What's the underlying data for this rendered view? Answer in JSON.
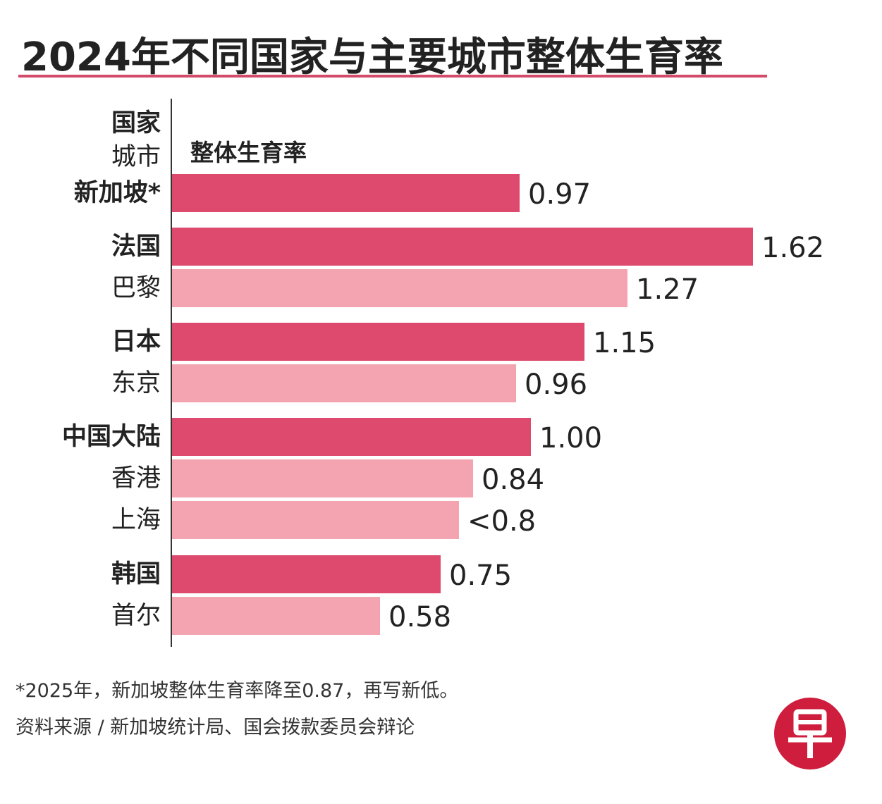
{
  "title": "2024年不同国家与主要城市整体生育率",
  "header": {
    "country": "国家",
    "city": "城市",
    "metric": "整体生育率"
  },
  "chart_data": {
    "type": "bar",
    "orientation": "horizontal",
    "title": "2024年不同国家与主要城市整体生育率",
    "xlabel": "整体生育率",
    "ylabel": "国家 / 城市",
    "xlim": [
      0,
      1.62
    ],
    "grid": false,
    "legend": "none",
    "rows": [
      {
        "label": "新加坡*",
        "kind": "country",
        "value": 0.97,
        "value_label": "0.97"
      },
      {
        "label": "法国",
        "kind": "country",
        "value": 1.62,
        "value_label": "1.62"
      },
      {
        "label": "巴黎",
        "kind": "city",
        "value": 1.27,
        "value_label": "1.27"
      },
      {
        "label": "日本",
        "kind": "country",
        "value": 1.15,
        "value_label": "1.15"
      },
      {
        "label": "东京",
        "kind": "city",
        "value": 0.96,
        "value_label": "0.96"
      },
      {
        "label": "中国大陆",
        "kind": "country",
        "value": 1.0,
        "value_label": "1.00"
      },
      {
        "label": "香港",
        "kind": "city",
        "value": 0.84,
        "value_label": "0.84"
      },
      {
        "label": "上海",
        "kind": "city",
        "value": 0.8,
        "value_label": "<0.8"
      },
      {
        "label": "韩国",
        "kind": "country",
        "value": 0.75,
        "value_label": "0.75"
      },
      {
        "label": "首尔",
        "kind": "city",
        "value": 0.58,
        "value_label": "0.58"
      }
    ]
  },
  "colors": {
    "country_bar": "#dd4a6e",
    "city_bar": "#f4a4b0",
    "accent": "#d44a6a",
    "logo": "#cf1d3d"
  },
  "footnotes": {
    "note": "*2025年，新加坡整体生育率降至0.87，再写新低。",
    "source": "资料来源 / 新加坡统计局、国会拨款委员会辩论"
  },
  "logo": {
    "glyph": "早"
  }
}
